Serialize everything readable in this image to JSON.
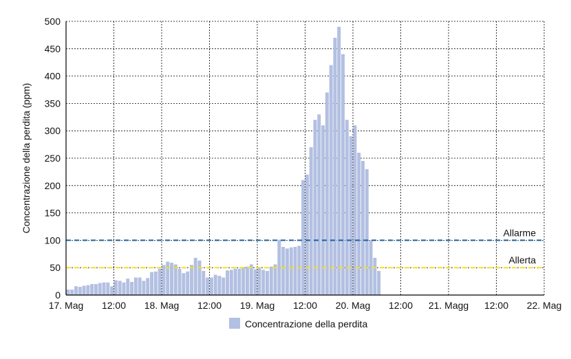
{
  "chart_data": {
    "type": "bar",
    "title": "",
    "xlabel": "",
    "ylabel": "Concentrazione della perdita (ppm)",
    "ylim": [
      0,
      500
    ],
    "y_ticks": [
      0,
      50,
      100,
      150,
      200,
      250,
      300,
      350,
      400,
      450,
      500
    ],
    "x_range_hours": [
      0,
      120
    ],
    "x_ticks": [
      {
        "hour": 0,
        "label": "17. Mag"
      },
      {
        "hour": 12,
        "label": "12:00"
      },
      {
        "hour": 24,
        "label": "18. Mag"
      },
      {
        "hour": 36,
        "label": "12:00"
      },
      {
        "hour": 48,
        "label": "19. Mag"
      },
      {
        "hour": 60,
        "label": "12:00"
      },
      {
        "hour": 72,
        "label": "20. Mag"
      },
      {
        "hour": 84,
        "label": "12:00"
      },
      {
        "hour": 96,
        "label": "21. Magg"
      },
      {
        "hour": 108,
        "label": "12:00"
      },
      {
        "hour": 120,
        "label": "22. Mag"
      }
    ],
    "grid": true,
    "legend_position": "bottom-center",
    "series": [
      {
        "name": "Concentrazione della perdita",
        "color": "#b3c0e2",
        "bar_width_hours": 1,
        "x": [
          0,
          1,
          2,
          3,
          4,
          5,
          6,
          7,
          8,
          9,
          10,
          11,
          12,
          13,
          14,
          15,
          16,
          17,
          18,
          19,
          20,
          21,
          22,
          23,
          24,
          25,
          26,
          27,
          28,
          29,
          30,
          31,
          32,
          33,
          34,
          35,
          36,
          37,
          38,
          39,
          40,
          41,
          42,
          43,
          44,
          45,
          46,
          47,
          48,
          49,
          50,
          51,
          52,
          53,
          54,
          55,
          56,
          57,
          58,
          59,
          60,
          61,
          62,
          63,
          64,
          65,
          66,
          67,
          68,
          69,
          70,
          71,
          72,
          73,
          74,
          75,
          76,
          77,
          78
        ],
        "values": [
          10,
          10,
          16,
          15,
          17,
          18,
          20,
          20,
          22,
          23,
          23,
          16,
          27,
          26,
          23,
          30,
          24,
          32,
          32,
          26,
          31,
          42,
          43,
          48,
          55,
          61,
          59,
          56,
          48,
          40,
          43,
          55,
          68,
          63,
          44,
          32,
          32,
          37,
          35,
          32,
          45,
          46,
          48,
          48,
          51,
          52,
          56,
          47,
          50,
          46,
          44,
          52,
          56,
          101,
          88,
          85,
          87,
          88,
          90,
          210,
          220,
          270,
          320,
          330,
          310,
          370,
          420,
          470,
          490,
          440,
          320,
          290,
          310,
          260,
          245,
          230,
          100,
          68,
          44
        ]
      }
    ],
    "reference_lines": [
      {
        "label": "Allarme",
        "value": 100,
        "color": "#1c5f9e"
      },
      {
        "label": "Allerta",
        "value": 50,
        "color": "#f0e020"
      }
    ]
  },
  "legend": {
    "label": "Concentrazione della perdita",
    "color": "#b3c0e2"
  }
}
